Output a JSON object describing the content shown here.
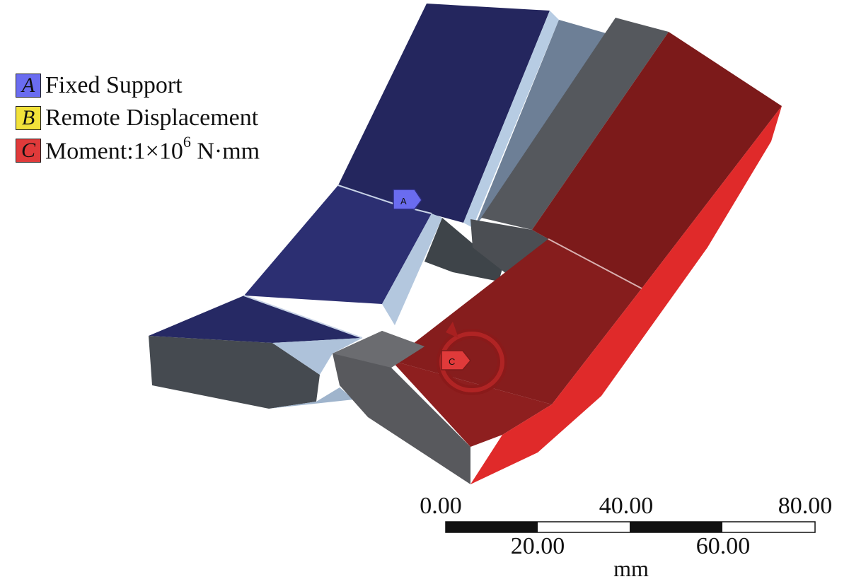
{
  "legend": [
    {
      "letter": "A",
      "label": "Fixed Support",
      "color": "#6a6cf0"
    },
    {
      "letter": "B",
      "label": "Remote Displacement",
      "color": "#f2e23a"
    },
    {
      "letter": "C",
      "label": "Moment:1×10",
      "exponent": "6",
      "suffix": " N·mm",
      "color": "#e03a3a"
    }
  ],
  "markers": {
    "a": "A",
    "c": "C"
  },
  "scale_bar": {
    "top_ticks": [
      "0.00",
      "40.00",
      "80.00"
    ],
    "bottom_ticks": [
      "20.00",
      "60.00"
    ],
    "unit": "mm"
  },
  "colors": {
    "fixed_face": "#24265e",
    "fixed_edge": "#a9bfd8",
    "body_gray": "#55585d",
    "moment_face": "#7c1a1a",
    "moment_side": "#e02a2a"
  }
}
